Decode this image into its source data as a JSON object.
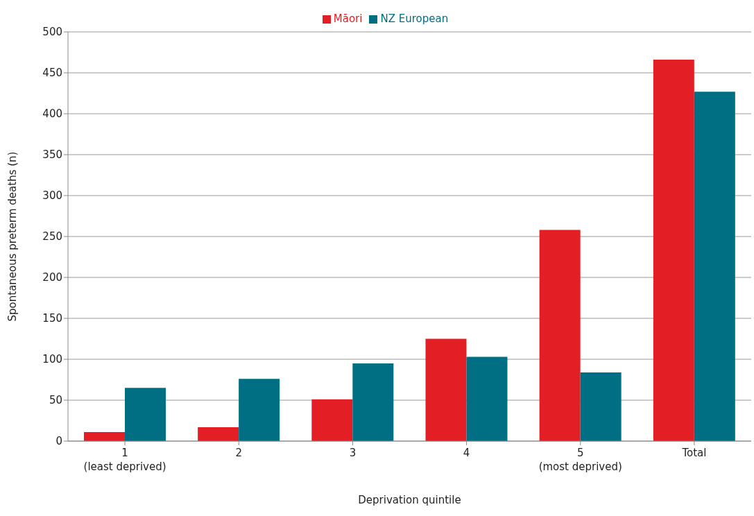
{
  "chart_data": {
    "type": "bar",
    "xlabel": "Deprivation quintile",
    "ylabel": "Spontaneous preterm deaths (n)",
    "categories": [
      "1\n(least deprived)",
      "2",
      "3",
      "4",
      "5\n(most deprived)",
      "Total"
    ],
    "series": [
      {
        "name": "Māori",
        "color": "#e31e24",
        "values": [
          11,
          17,
          51,
          125,
          258,
          466
        ]
      },
      {
        "name": "NZ European",
        "color": "#006f84",
        "values": [
          65,
          76,
          95,
          103,
          84,
          427
        ]
      }
    ],
    "ylim": [
      0,
      500
    ],
    "yticks": [
      0,
      50,
      100,
      150,
      200,
      250,
      300,
      350,
      400,
      450,
      500
    ],
    "grid": "y",
    "legend": "top"
  }
}
